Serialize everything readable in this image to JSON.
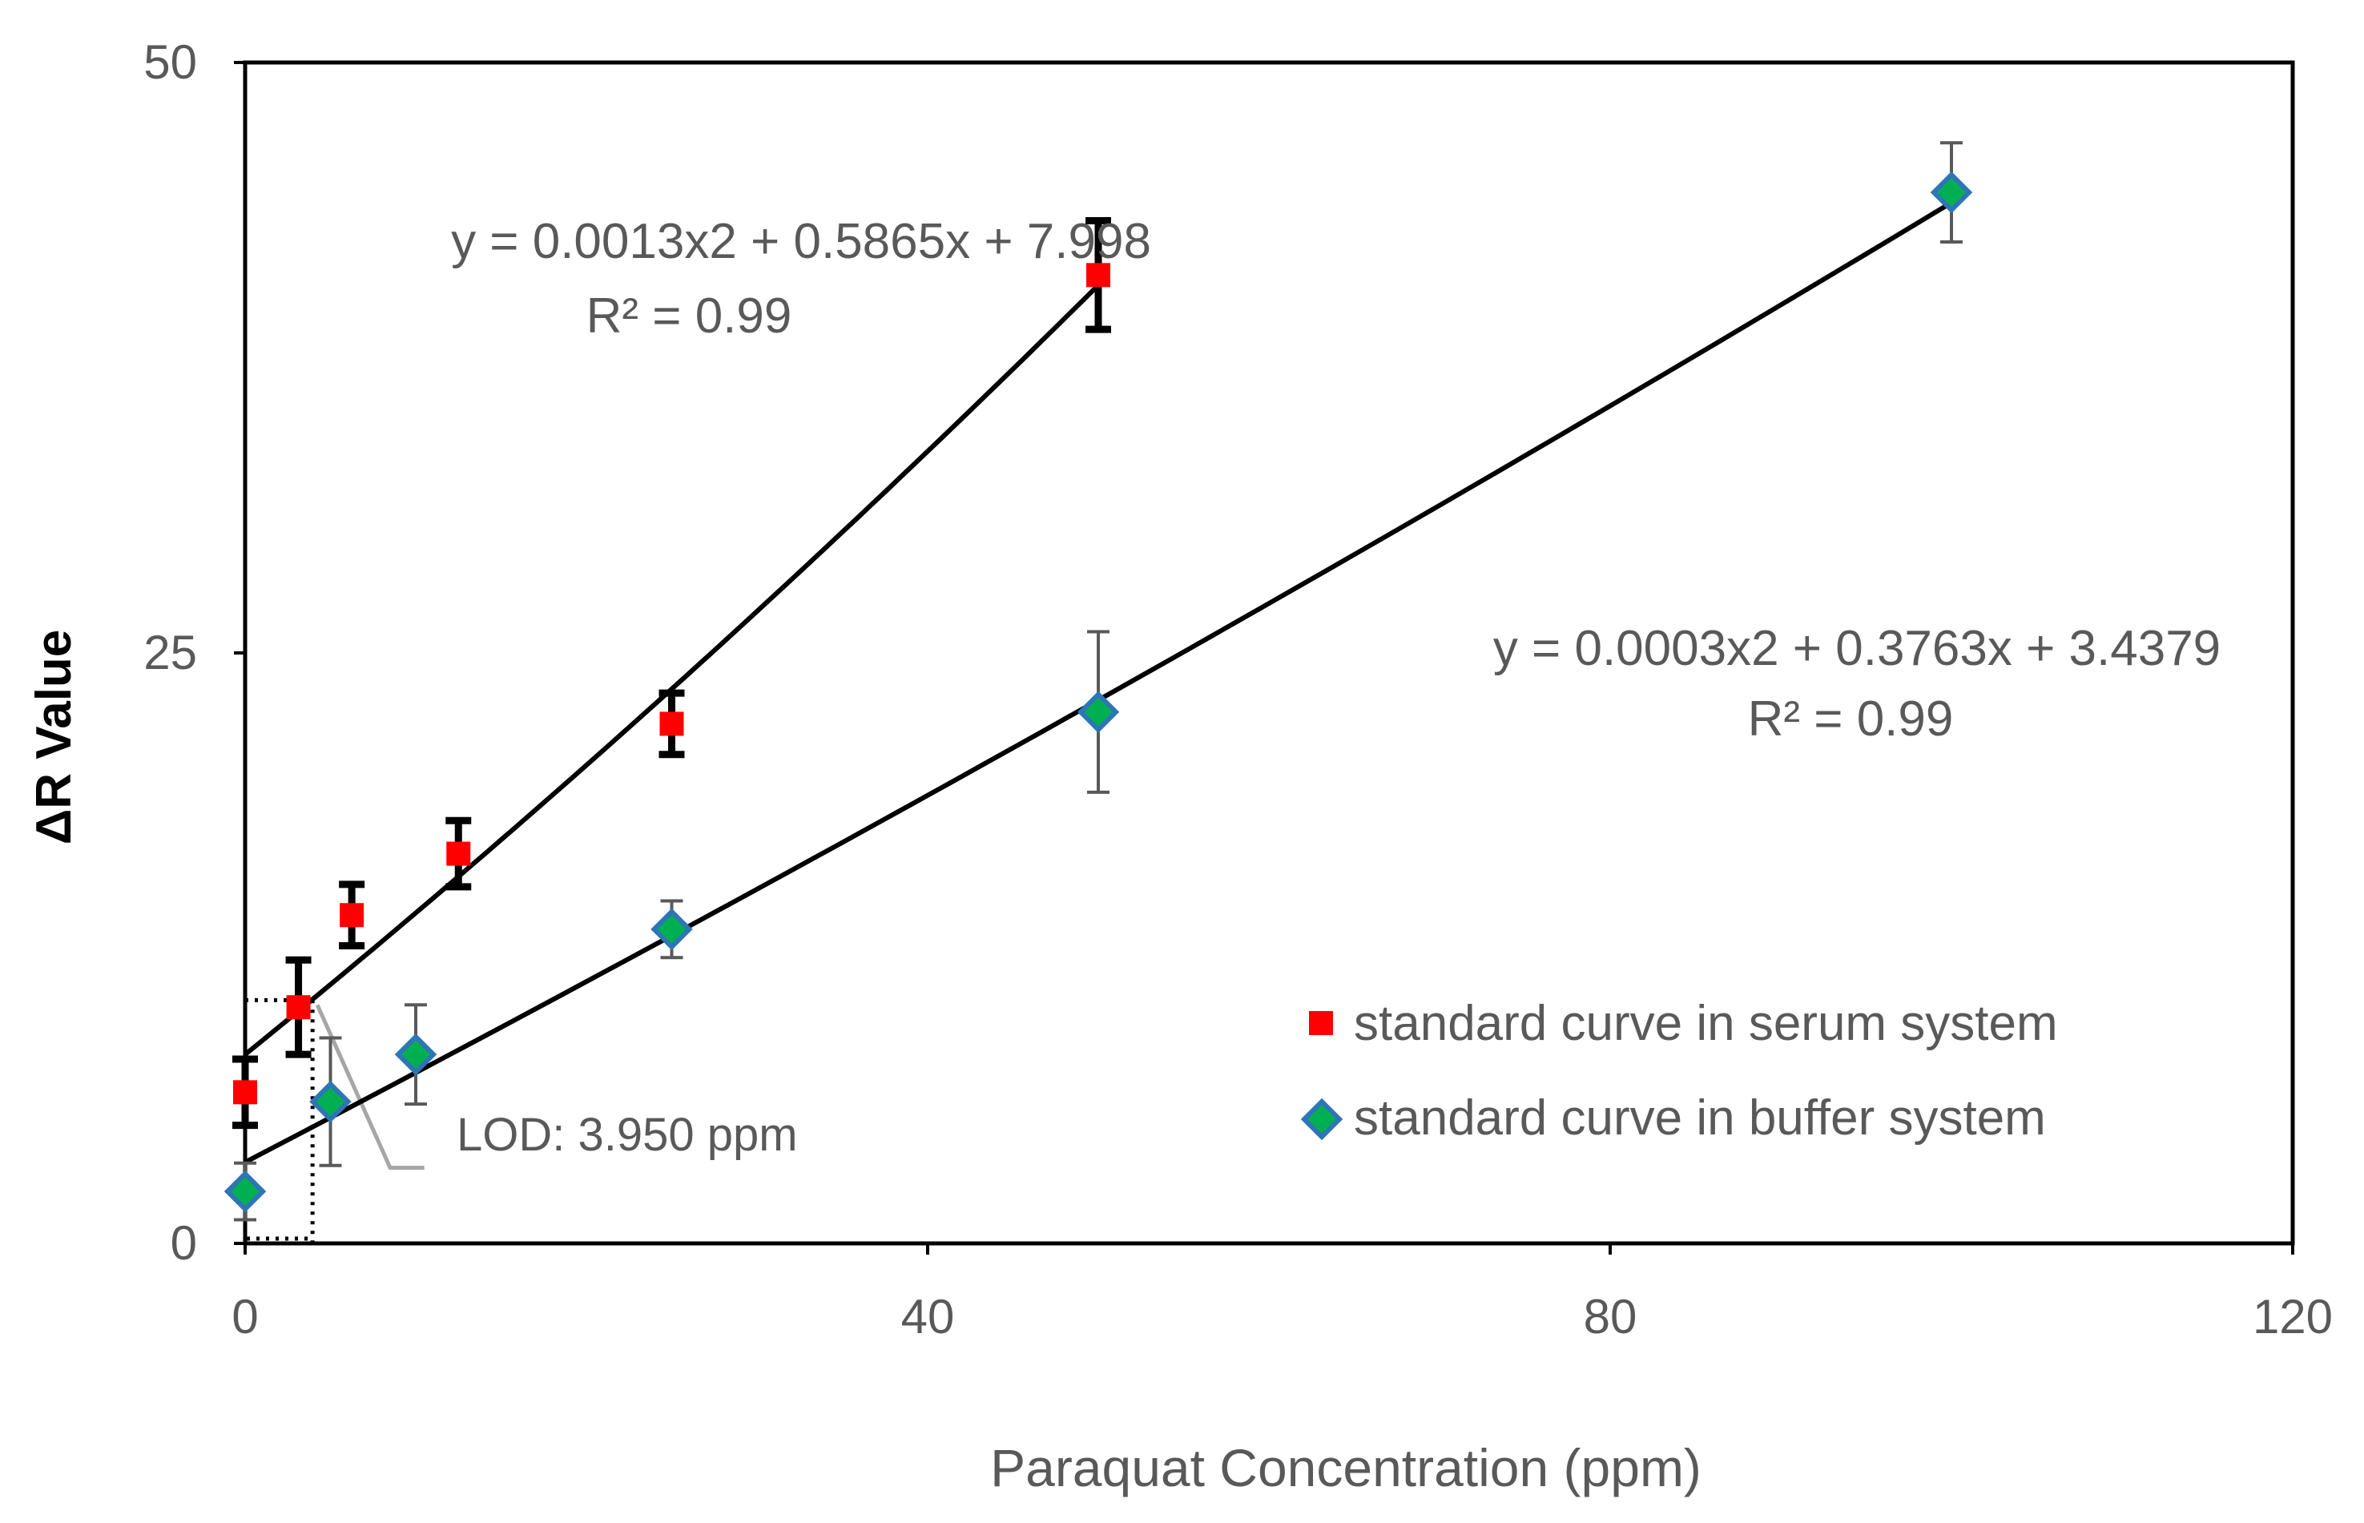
{
  "chart_data": {
    "type": "scatter",
    "xlabel": "Paraquat Concentration (ppm)",
    "ylabel": "ΔR Value",
    "xlim": [
      0,
      120
    ],
    "ylim": [
      0,
      50
    ],
    "x_ticks": [
      "0",
      "40",
      "80",
      "120"
    ],
    "y_ticks": [
      "0",
      "25",
      "50"
    ],
    "x_tick_values": [
      0,
      40,
      80,
      120
    ],
    "y_tick_values": [
      0,
      25,
      50
    ],
    "grid": false,
    "legend_position": "bottom-right",
    "series": [
      {
        "name": "standard curve in serum system",
        "marker": "square",
        "color": "#ff0000",
        "x": [
          0,
          3.125,
          6.25,
          12.5,
          25,
          50
        ],
        "y": [
          6.4,
          10,
          13.9,
          16.5,
          22,
          41
        ],
        "error": [
          1.4,
          2,
          1.3,
          1.4,
          1.3,
          2.3
        ],
        "fit": {
          "equation": "y = 0.0013x2 + 0.5865x + 7.998",
          "r2": "R² = 0.99",
          "a": 0.0013,
          "b": 0.5865,
          "c": 7.998,
          "x_range": [
            0,
            50
          ]
        }
      },
      {
        "name": "standard curve in buffer system",
        "marker": "diamond",
        "color": "#00b050",
        "edge_color": "#2e75b6",
        "x": [
          0,
          5,
          10,
          25,
          50,
          100
        ],
        "y": [
          2.2,
          6,
          8,
          13.3,
          22.5,
          44.5
        ],
        "error": [
          1.2,
          2.7,
          2.1,
          1.2,
          3.4,
          2.1
        ],
        "fit": {
          "equation": "y = 0.0003x2 + 0.3763x + 3.4379",
          "r2": "R² = 0.99",
          "a": 0.0003,
          "b": 0.3763,
          "c": 3.4379,
          "x_range": [
            0,
            100
          ]
        }
      }
    ],
    "annotations": [
      {
        "text": "LOD: 3.950 ppm",
        "x": 3.95,
        "y": 10.3
      }
    ]
  },
  "colors": {
    "axis": "#000000",
    "tick_text": "#595959",
    "fit_line": "#000000",
    "serum_error": "#000000",
    "buffer_error": "#595959",
    "leader_line": "#a6a6a6"
  }
}
